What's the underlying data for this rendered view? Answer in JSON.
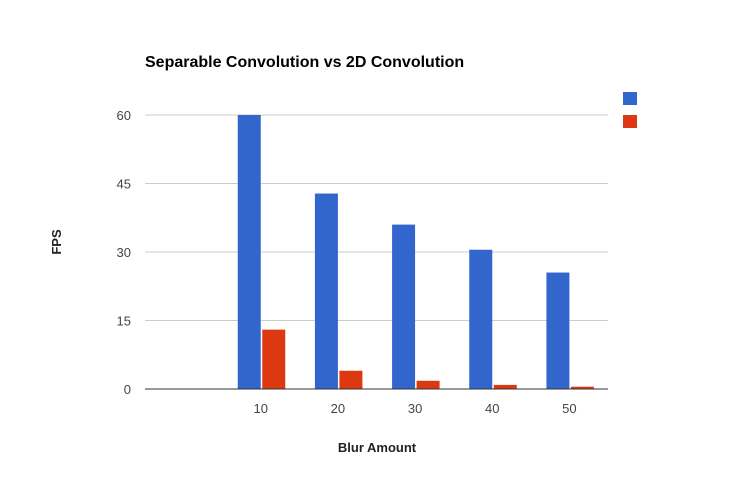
{
  "chart_data": {
    "type": "bar",
    "title": "Separable Convolution vs 2D Convolution",
    "xlabel": "Blur Amount",
    "ylabel": "FPS",
    "categories": [
      "",
      "10",
      "20",
      "30",
      "40",
      "50"
    ],
    "series": [
      {
        "values": [
          0,
          60,
          42.8,
          36,
          30.5,
          25.5
        ],
        "color": "#3366cc"
      },
      {
        "values": [
          0,
          13,
          4,
          1.8,
          0.9,
          0.5
        ],
        "color": "#dc3912"
      }
    ],
    "ylim": [
      0,
      60
    ],
    "yticks": [
      "0",
      "15",
      "30",
      "45",
      "60"
    ],
    "grid": true,
    "legend": "right"
  }
}
